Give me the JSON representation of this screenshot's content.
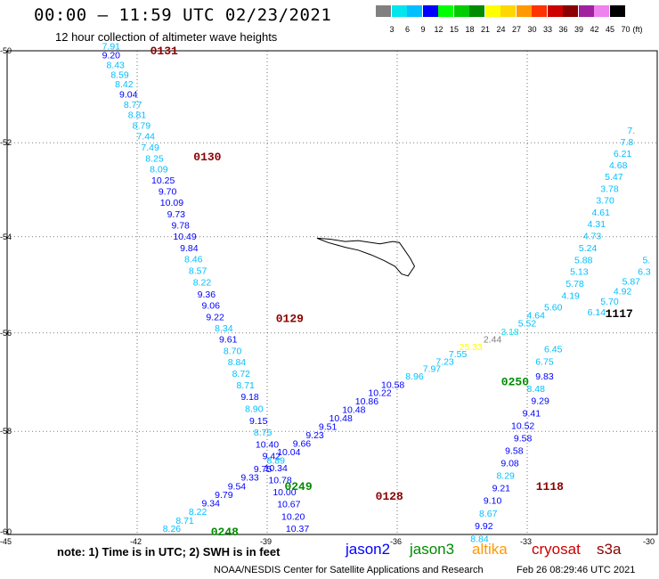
{
  "header": {
    "title": "00:00 – 11:59 UTC 02/23/2021",
    "subtitle": "12 hour collection of altimeter wave heights"
  },
  "colorbar": {
    "unit": "(ft)",
    "levels": [
      {
        "label": "3",
        "color": "#808080"
      },
      {
        "label": "6",
        "color": "#00e5ee"
      },
      {
        "label": "9",
        "color": "#00bfff"
      },
      {
        "label": "12",
        "color": "#0000ff"
      },
      {
        "label": "15",
        "color": "#00ff00"
      },
      {
        "label": "18",
        "color": "#00cc00"
      },
      {
        "label": "21",
        "color": "#008b00"
      },
      {
        "label": "24",
        "color": "#ffff00"
      },
      {
        "label": "27",
        "color": "#ffd700"
      },
      {
        "label": "30",
        "color": "#ff9900"
      },
      {
        "label": "33",
        "color": "#ff3300"
      },
      {
        "label": "36",
        "color": "#cc0000"
      },
      {
        "label": "39",
        "color": "#8b0000"
      },
      {
        "label": "42",
        "color": "#a020a0"
      },
      {
        "label": "45",
        "color": "#ee82ee"
      },
      {
        "label": "70",
        "color": "#000000"
      }
    ]
  },
  "axes": {
    "lat_labels": [
      "-50",
      "-52",
      "-54",
      "-56",
      "-58",
      "-60"
    ],
    "lon_labels": [
      "-45",
      "-42",
      "-39",
      "-36",
      "-33",
      "-30"
    ]
  },
  "tracks": [
    {
      "name": "track-west",
      "times": [
        {
          "text": "0131",
          "lon": -41.7,
          "lat": -50.0
        },
        {
          "text": "0130",
          "lon": -40.7,
          "lat": -52.3
        },
        {
          "text": "0129",
          "lon": -38.8,
          "lat": -55.7
        },
        {
          "text": "0128",
          "lon": -36.5,
          "lat": -59.3
        }
      ],
      "points": [
        {
          "v": "7.91",
          "lon": -42.6,
          "lat": -49.97,
          "c": "#00bfff"
        },
        {
          "v": "9.20",
          "lon": -42.6,
          "lat": -50.17,
          "c": "#0000ff"
        },
        {
          "v": "8.43",
          "lon": -42.5,
          "lat": -50.38,
          "c": "#00bfff"
        },
        {
          "v": "8.59",
          "lon": -42.4,
          "lat": -50.6,
          "c": "#00bfff"
        },
        {
          "v": "8.42",
          "lon": -42.3,
          "lat": -50.8,
          "c": "#00bfff"
        },
        {
          "v": "9.04",
          "lon": -42.2,
          "lat": -51.02,
          "c": "#0000ff"
        },
        {
          "v": "8.77",
          "lon": -42.1,
          "lat": -51.25,
          "c": "#00bfff"
        },
        {
          "v": "8.81",
          "lon": -42.0,
          "lat": -51.47,
          "c": "#00bfff"
        },
        {
          "v": "8.79",
          "lon": -41.9,
          "lat": -51.7,
          "c": "#00bfff"
        },
        {
          "v": "7.44",
          "lon": -41.8,
          "lat": -51.93,
          "c": "#00bfff"
        },
        {
          "v": "7.49",
          "lon": -41.7,
          "lat": -52.17,
          "c": "#00bfff"
        },
        {
          "v": "8.25",
          "lon": -41.6,
          "lat": -52.41,
          "c": "#00bfff"
        },
        {
          "v": "8.09",
          "lon": -41.5,
          "lat": -52.64,
          "c": "#00bfff"
        },
        {
          "v": "10.25",
          "lon": -41.4,
          "lat": -52.87,
          "c": "#0000ff"
        },
        {
          "v": "9.70",
          "lon": -41.3,
          "lat": -53.11,
          "c": "#0000ff"
        },
        {
          "v": "10.09",
          "lon": -41.2,
          "lat": -53.35,
          "c": "#0000ff"
        },
        {
          "v": "9.73",
          "lon": -41.1,
          "lat": -53.59,
          "c": "#0000ff"
        },
        {
          "v": "9.78",
          "lon": -41.0,
          "lat": -53.83,
          "c": "#0000ff"
        },
        {
          "v": "10.49",
          "lon": -40.9,
          "lat": -54.06,
          "c": "#0000ff"
        },
        {
          "v": "9.84",
          "lon": -40.8,
          "lat": -54.3,
          "c": "#0000ff"
        },
        {
          "v": "8.46",
          "lon": -40.7,
          "lat": -54.54,
          "c": "#00bfff"
        },
        {
          "v": "8.57",
          "lon": -40.6,
          "lat": -54.78,
          "c": "#00bfff"
        },
        {
          "v": "8.22",
          "lon": -40.5,
          "lat": -55.02,
          "c": "#00bfff"
        },
        {
          "v": "9.36",
          "lon": -40.4,
          "lat": -55.27,
          "c": "#0000ff"
        },
        {
          "v": "9.06",
          "lon": -40.3,
          "lat": -55.5,
          "c": "#0000ff"
        },
        {
          "v": "9.22",
          "lon": -40.2,
          "lat": -55.74,
          "c": "#0000ff"
        },
        {
          "v": "8.34",
          "lon": -40.0,
          "lat": -55.97,
          "c": "#00bfff"
        },
        {
          "v": "9.61",
          "lon": -39.9,
          "lat": -56.2,
          "c": "#0000ff"
        },
        {
          "v": "8.70",
          "lon": -39.8,
          "lat": -56.43,
          "c": "#00bfff"
        },
        {
          "v": "8.84",
          "lon": -39.7,
          "lat": -56.66,
          "c": "#00bfff"
        },
        {
          "v": "8.72",
          "lon": -39.6,
          "lat": -56.9,
          "c": "#00bfff"
        },
        {
          "v": "8.71",
          "lon": -39.5,
          "lat": -57.13,
          "c": "#00bfff"
        },
        {
          "v": "9.18",
          "lon": -39.4,
          "lat": -57.37,
          "c": "#0000ff"
        },
        {
          "v": "8.90",
          "lon": -39.3,
          "lat": -57.61,
          "c": "#00bfff"
        },
        {
          "v": "9.15",
          "lon": -39.2,
          "lat": -57.85,
          "c": "#0000ff"
        },
        {
          "v": "8.75",
          "lon": -39.1,
          "lat": -58.09,
          "c": "#00bfff"
        },
        {
          "v": "10.40",
          "lon": -39.0,
          "lat": -58.33,
          "c": "#0000ff"
        },
        {
          "v": "9.42",
          "lon": -38.9,
          "lat": -58.56,
          "c": "#0000ff"
        },
        {
          "v": "10.34",
          "lon": -38.8,
          "lat": -58.8,
          "c": "#0000ff"
        },
        {
          "v": "10.78",
          "lon": -38.7,
          "lat": -59.04,
          "c": "#0000ff"
        },
        {
          "v": "10.00",
          "lon": -38.6,
          "lat": -59.28,
          "c": "#0000ff"
        },
        {
          "v": "10.67",
          "lon": -38.5,
          "lat": -59.52,
          "c": "#0000ff"
        },
        {
          "v": "10.20",
          "lon": -38.4,
          "lat": -59.76,
          "c": "#0000ff"
        },
        {
          "v": "10.37",
          "lon": -38.3,
          "lat": -60.0,
          "c": "#0000ff"
        }
      ]
    },
    {
      "name": "track-middle",
      "times": [
        {
          "text": "0250",
          "lon": -33.6,
          "lat": -57.0
        },
        {
          "text": "0249",
          "lon": -38.6,
          "lat": -59.1
        },
        {
          "text": "0248",
          "lon": -40.3,
          "lat": -60.0
        }
      ],
      "points": [
        {
          "v": "8.26",
          "lon": -41.2,
          "lat": -60.0,
          "c": "#00bfff"
        },
        {
          "v": "8.71",
          "lon": -40.9,
          "lat": -59.84,
          "c": "#00bfff"
        },
        {
          "v": "8.22",
          "lon": -40.6,
          "lat": -59.67,
          "c": "#00bfff"
        },
        {
          "v": "9.34",
          "lon": -40.3,
          "lat": -59.5,
          "c": "#0000ff"
        },
        {
          "v": "9.79",
          "lon": -40.0,
          "lat": -59.33,
          "c": "#0000ff"
        },
        {
          "v": "9.54",
          "lon": -39.7,
          "lat": -59.16,
          "c": "#0000ff"
        },
        {
          "v": "9.33",
          "lon": -39.4,
          "lat": -58.99,
          "c": "#0000ff"
        },
        {
          "v": "9.75",
          "lon": -39.1,
          "lat": -58.82,
          "c": "#0000ff"
        },
        {
          "v": "8.89",
          "lon": -38.8,
          "lat": -58.65,
          "c": "#00bfff"
        },
        {
          "v": "10.04",
          "lon": -38.5,
          "lat": -58.48,
          "c": "#0000ff"
        },
        {
          "v": "9.66",
          "lon": -38.2,
          "lat": -58.31,
          "c": "#0000ff"
        },
        {
          "v": "9.23",
          "lon": -37.9,
          "lat": -58.14,
          "c": "#0000ff"
        },
        {
          "v": "9.51",
          "lon": -37.6,
          "lat": -57.97,
          "c": "#0000ff"
        },
        {
          "v": "10.48",
          "lon": -37.3,
          "lat": -57.8,
          "c": "#0000ff"
        },
        {
          "v": "10.48",
          "lon": -37.0,
          "lat": -57.63,
          "c": "#0000ff"
        },
        {
          "v": "10.86",
          "lon": -36.7,
          "lat": -57.46,
          "c": "#0000ff"
        },
        {
          "v": "10.22",
          "lon": -36.4,
          "lat": -57.29,
          "c": "#0000ff"
        },
        {
          "v": "10.58",
          "lon": -36.1,
          "lat": -57.12,
          "c": "#0000ff"
        },
        {
          "v": "8.96",
          "lon": -35.6,
          "lat": -56.95,
          "c": "#00bfff"
        },
        {
          "v": "7.97",
          "lon": -35.2,
          "lat": -56.8,
          "c": "#00bfff"
        },
        {
          "v": "7.23",
          "lon": -34.9,
          "lat": -56.65,
          "c": "#00bfff"
        },
        {
          "v": "7.55",
          "lon": -34.6,
          "lat": -56.5,
          "c": "#00bfff"
        },
        {
          "v": "25.33",
          "lon": -34.3,
          "lat": -56.35,
          "c": "#ffff00"
        },
        {
          "v": "2.44",
          "lon": -33.8,
          "lat": -56.2,
          "c": "#808080"
        },
        {
          "v": "3.18",
          "lon": -33.4,
          "lat": -56.04,
          "c": "#00e5ee"
        },
        {
          "v": "5.52",
          "lon": -33.0,
          "lat": -55.87,
          "c": "#00bfff"
        },
        {
          "v": "4.64",
          "lon": -32.8,
          "lat": -55.7,
          "c": "#00bfff"
        },
        {
          "v": "5.60",
          "lon": -32.4,
          "lat": -55.54,
          "c": "#00bfff"
        },
        {
          "v": "4.19",
          "lon": -32.0,
          "lat": -55.3,
          "c": "#00bfff"
        },
        {
          "v": "5.78",
          "lon": -31.9,
          "lat": -55.05,
          "c": "#00bfff"
        },
        {
          "v": "5.13",
          "lon": -31.8,
          "lat": -54.8,
          "c": "#00bfff"
        },
        {
          "v": "5.88",
          "lon": -31.7,
          "lat": -54.55,
          "c": "#00bfff"
        },
        {
          "v": "5.24",
          "lon": -31.6,
          "lat": -54.3,
          "c": "#00bfff"
        },
        {
          "v": "4.73",
          "lon": -31.5,
          "lat": -54.05,
          "c": "#00bfff"
        },
        {
          "v": "4.31",
          "lon": -31.4,
          "lat": -53.8,
          "c": "#00bfff"
        },
        {
          "v": "4.61",
          "lon": -31.3,
          "lat": -53.55,
          "c": "#00bfff"
        },
        {
          "v": "3.70",
          "lon": -31.2,
          "lat": -53.3,
          "c": "#00bfff"
        },
        {
          "v": "3.78",
          "lon": -31.1,
          "lat": -53.05,
          "c": "#00bfff"
        },
        {
          "v": "5.47",
          "lon": -31.0,
          "lat": -52.8,
          "c": "#00bfff"
        },
        {
          "v": "4.68",
          "lon": -30.9,
          "lat": -52.55,
          "c": "#00bfff"
        },
        {
          "v": "6.21",
          "lon": -30.8,
          "lat": -52.3,
          "c": "#00bfff"
        },
        {
          "v": "7.8",
          "lon": -30.7,
          "lat": -52.05,
          "c": "#00bfff"
        },
        {
          "v": "7.",
          "lon": -30.6,
          "lat": -51.8,
          "c": "#00bfff"
        }
      ]
    },
    {
      "name": "track-east",
      "times": [
        {
          "text": "1117",
          "lon": -31.2,
          "lat": -55.6
        },
        {
          "text": "1118",
          "lon": -32.8,
          "lat": -59.1
        }
      ],
      "points": [
        {
          "v": "5.",
          "lon": -30.25,
          "lat": -54.55,
          "c": "#00bfff"
        },
        {
          "v": "6.3",
          "lon": -30.3,
          "lat": -54.8,
          "c": "#00bfff"
        },
        {
          "v": "5.87",
          "lon": -30.6,
          "lat": -55.0,
          "c": "#00bfff"
        },
        {
          "v": "4.92",
          "lon": -30.8,
          "lat": -55.2,
          "c": "#00bfff"
        },
        {
          "v": "5.70",
          "lon": -31.1,
          "lat": -55.42,
          "c": "#00bfff"
        },
        {
          "v": "6.14",
          "lon": -31.4,
          "lat": -55.64,
          "c": "#00bfff"
        },
        {
          "v": "6.75",
          "lon": -32.6,
          "lat": -56.65,
          "c": "#00bfff"
        },
        {
          "v": "6.45",
          "lon": -32.4,
          "lat": -56.4,
          "c": "#00bfff"
        },
        {
          "v": "9.83",
          "lon": -32.6,
          "lat": -56.95,
          "c": "#0000ff"
        },
        {
          "v": "8.48",
          "lon": -32.8,
          "lat": -57.2,
          "c": "#00bfff"
        },
        {
          "v": "9.29",
          "lon": -32.7,
          "lat": -57.45,
          "c": "#0000ff"
        },
        {
          "v": "9.41",
          "lon": -32.9,
          "lat": -57.7,
          "c": "#0000ff"
        },
        {
          "v": "10.52",
          "lon": -33.1,
          "lat": -57.95,
          "c": "#0000ff"
        },
        {
          "v": "9.58",
          "lon": -33.1,
          "lat": -58.2,
          "c": "#0000ff"
        },
        {
          "v": "9.58",
          "lon": -33.3,
          "lat": -58.45,
          "c": "#0000ff"
        },
        {
          "v": "9.08",
          "lon": -33.4,
          "lat": -58.7,
          "c": "#0000ff"
        },
        {
          "v": "8.29",
          "lon": -33.5,
          "lat": -58.95,
          "c": "#00bfff"
        },
        {
          "v": "9.21",
          "lon": -33.6,
          "lat": -59.2,
          "c": "#0000ff"
        },
        {
          "v": "9.10",
          "lon": -33.8,
          "lat": -59.45,
          "c": "#0000ff"
        },
        {
          "v": "8.67",
          "lon": -33.9,
          "lat": -59.7,
          "c": "#00bfff"
        },
        {
          "v": "9.92",
          "lon": -34.0,
          "lat": -59.95,
          "c": "#0000ff"
        },
        {
          "v": "8.84",
          "lon": -34.1,
          "lat": -60.2,
          "c": "#00bfff"
        }
      ]
    }
  ],
  "footer": {
    "note": "note: 1) Time is in UTC; 2) SWH is in feet",
    "legend": [
      {
        "name": "jason2",
        "color": "#0000ff"
      },
      {
        "name": "jason3",
        "color": "#008b00"
      },
      {
        "name": "altika",
        "color": "#ff9900"
      },
      {
        "name": "cryosat",
        "color": "#cc0000"
      },
      {
        "name": "s3a",
        "color": "#8b0000"
      }
    ],
    "credit": "NOAA/NESDIS Center for Satellite Applications and Research",
    "timestamp": "Feb 26 08:29:46 UTC 2021"
  }
}
